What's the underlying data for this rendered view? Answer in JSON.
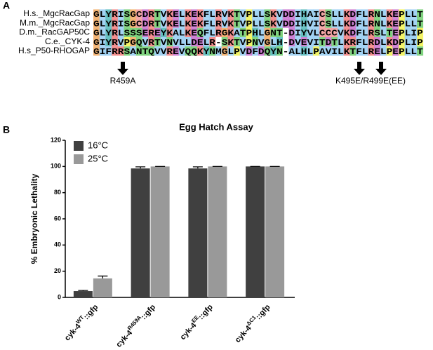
{
  "panel_a": {
    "label": "A",
    "names": [
      "H.s._MgcRacGap",
      "M.m._MgcRacGap",
      "D.m._RacGAP50C",
      "C.e._CYK-4",
      "H.s_P50-RHOGAP"
    ],
    "sequences": [
      "GLYRISGCDRTVKELKEKFLRVKTVPLLSKVDDIHAICSLLKDFLRNLKEPLLT",
      "GLYRISGCDRTVKELKEKFLRVKTVPLLSKVDDIHVICSLLKDFLRNLKEPLLT",
      "GLYRLSSSEREYKALKEQFLRGKATPHLGNT-DIYVLCCCVKDFLRSLTEPLIP",
      "GIYRVPGQVRTVNVLLDELR-SKTVPNVGLH-DVEVITDTLKRFLRDLKDPLIP",
      "GIFRRSANTQVVREVQQKYNMGLPVDFDQYN-ALHLPAVILKTFLRELPEPLLT"
    ],
    "annotations": [
      "R459A",
      "K495E/R499E(EE)"
    ]
  },
  "panel_b_label": "B",
  "chart_data": {
    "type": "bar",
    "title": "Egg Hatch Assay",
    "y_label": "% Embryonic Lethality",
    "categories": [
      [
        "cyk-4",
        "WT",
        "::gfp"
      ],
      [
        "cyk-4",
        "R459A",
        "::gfp"
      ],
      [
        "cyk-4",
        "EE",
        "::gfp"
      ],
      [
        "cyk-4",
        "ΔC1",
        "::gfp"
      ]
    ],
    "series": [
      {
        "name": "16°C",
        "color": "#404040",
        "values": [
          4.8,
          98.5,
          98.5,
          100
        ],
        "errors": [
          0.5,
          1.2,
          1.2,
          0
        ]
      },
      {
        "name": "25°C",
        "color": "#999999",
        "values": [
          14.5,
          100,
          100,
          100
        ],
        "errors": [
          1.8,
          0,
          0,
          0
        ]
      }
    ],
    "ylim": [
      0,
      120
    ],
    "yticks": [
      0,
      20,
      40,
      60,
      80,
      100,
      120
    ],
    "legend": "upper-left"
  }
}
